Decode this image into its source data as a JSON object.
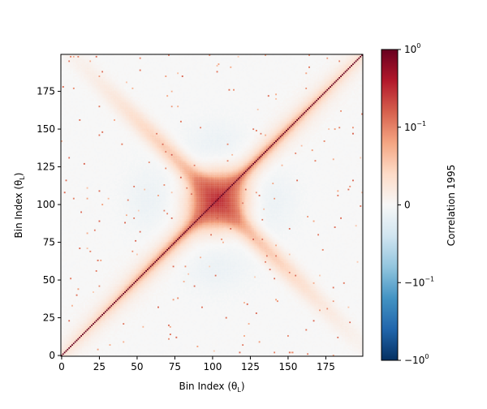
{
  "chart_data": {
    "type": "heatmap",
    "title": "",
    "xlabel": "Bin Index (θ",
    "xlabel_sub": "L",
    "xlabel_close": ")",
    "ylabel": "Bin Index (θ",
    "ylabel_sub": "L",
    "ylabel_close": ")",
    "x_range": [
      0,
      199
    ],
    "y_range": [
      0,
      199
    ],
    "x_ticks": [
      0,
      25,
      50,
      75,
      100,
      125,
      150,
      175
    ],
    "y_ticks": [
      0,
      25,
      50,
      75,
      100,
      125,
      150,
      175
    ],
    "n_bins": 200,
    "colorbar": {
      "label": "Correlation 1995",
      "scale": "symlog",
      "range": [
        -1,
        1
      ],
      "colormap": "RdBu_r",
      "ticks": [
        {
          "value": 1,
          "base": "10",
          "exp": "0",
          "sign": ""
        },
        {
          "value": 0.1,
          "base": "10",
          "exp": "−1",
          "sign": ""
        },
        {
          "value": 0,
          "plain": "0"
        },
        {
          "value": -0.1,
          "base": "10",
          "exp": "−1",
          "sign": "−"
        },
        {
          "value": -1,
          "base": "10",
          "exp": "0",
          "sign": "−"
        }
      ]
    },
    "structure": {
      "diagonal_value": 1.0,
      "center_bin": [
        103,
        103
      ],
      "anti_diagonal_band": "positive correlation ~0.02-0.1 along x+y≈206",
      "negative_lobes": [
        [
          140,
          103
        ],
        [
          103,
          140
        ],
        [
          103,
          58
        ],
        [
          58,
          103
        ]
      ]
    }
  },
  "colors": {
    "diag": "#67001f",
    "deep_red": "#b2182b",
    "red": "#d6604d",
    "salmon": "#f4a582",
    "pale_red": "#fddbc7",
    "white": "#f7f7f7",
    "pale_blue": "#d1e5f0",
    "blue": "#92c5de",
    "mid_blue": "#4393c3",
    "dark_blue": "#2166ac",
    "navy": "#053061"
  }
}
